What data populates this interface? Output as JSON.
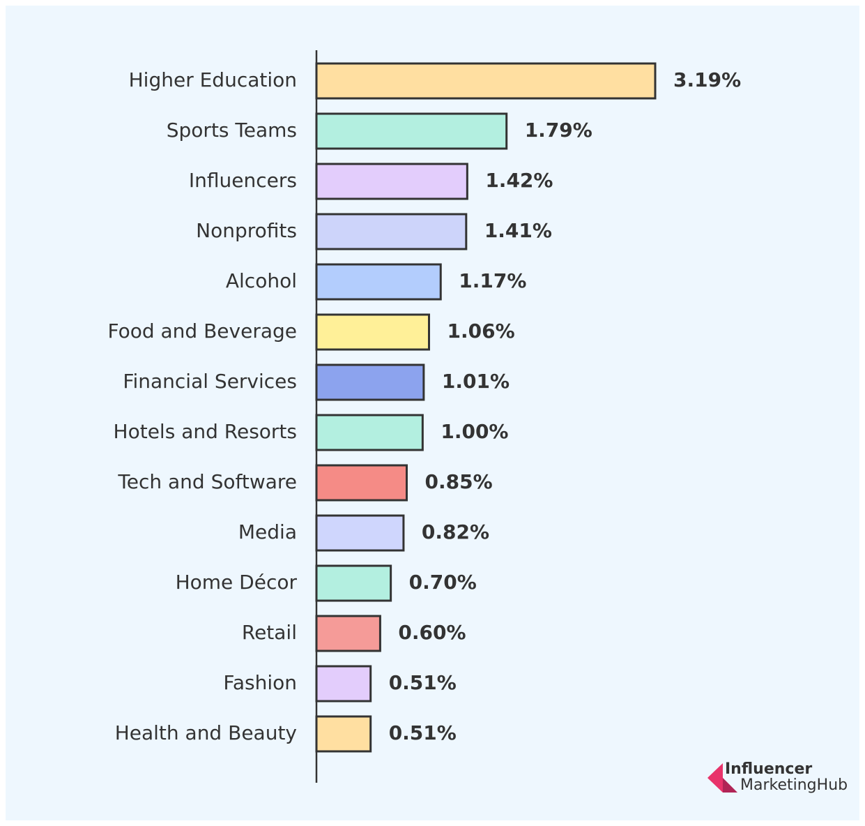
{
  "chart_data": {
    "type": "bar",
    "orientation": "horizontal",
    "categories": [
      "Higher Education",
      "Sports Teams",
      "Influencers",
      "Nonprofits",
      "Alcohol",
      "Food and Beverage",
      "Financial Services",
      "Hotels and Resorts",
      "Tech and Software",
      "Media",
      "Home Décor",
      "Retail",
      "Fashion",
      "Health and Beauty"
    ],
    "values": [
      3.19,
      1.79,
      1.42,
      1.41,
      1.17,
      1.06,
      1.01,
      1.0,
      0.85,
      0.82,
      0.7,
      0.6,
      0.51,
      0.51
    ],
    "value_labels": [
      "3.19%",
      "1.79%",
      "1.42%",
      "1.41%",
      "1.17%",
      "1.06%",
      "1.01%",
      "1.00%",
      "0.85%",
      "0.82%",
      "0.70%",
      "0.60%",
      "0.51%",
      "0.51%"
    ],
    "colors": [
      "#ffdfa1",
      "#b3efe0",
      "#e3cdfc",
      "#cdd4fa",
      "#b3cdfd",
      "#fff098",
      "#8ca3ee",
      "#b3efe0",
      "#f58b86",
      "#cfd6fd",
      "#b3efe0",
      "#f59b98",
      "#e3cdfc",
      "#ffdfa1"
    ],
    "xlim": [
      0,
      3.19
    ],
    "grid": false
  },
  "brand": {
    "line1": "Influencer",
    "line2": "MarketingHub"
  }
}
